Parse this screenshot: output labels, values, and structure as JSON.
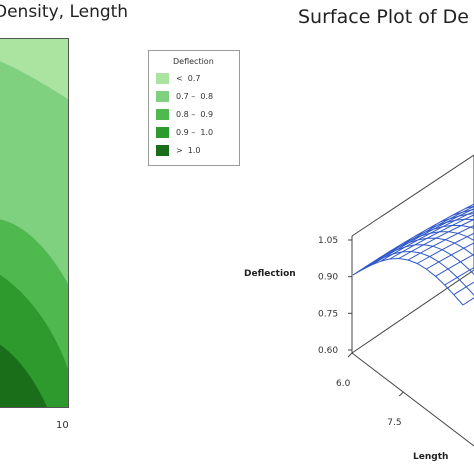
{
  "chart_data": [
    {
      "type": "contour",
      "title": "Density, Length",
      "x_ticks": [
        "10"
      ],
      "colors": [
        "#abe3a0",
        "#7fd17f",
        "#4fb84f",
        "#2e9a2e",
        "#1a6e1a"
      ]
    },
    {
      "type": "surface",
      "title": "Surface Plot of De",
      "zlabel": "Deflection",
      "z_ticks": [
        1.05,
        0.9,
        0.75,
        0.6
      ],
      "z_tick_labels": [
        "1.05",
        "0.90",
        "0.75",
        "0.60"
      ],
      "zlim": [
        0.6,
        1.05
      ],
      "x_label": "Length",
      "x_ticks": [
        6.0,
        7.5
      ],
      "x_tick_labels": [
        "6.0",
        "7.5"
      ],
      "surface_color": "#2f57c9",
      "legend": {
        "title": "Deflection",
        "entries": [
          {
            "label": "<  0.7",
            "color": "#abe3a0"
          },
          {
            "label": "0.7 –  0.8",
            "color": "#7fd17f"
          },
          {
            "label": "0.8 –  0.9",
            "color": "#4fb84f"
          },
          {
            "label": "0.9 –  1.0",
            "color": "#2e9a2e"
          },
          {
            "label": ">  1.0",
            "color": "#1a6e1a"
          }
        ]
      }
    }
  ]
}
